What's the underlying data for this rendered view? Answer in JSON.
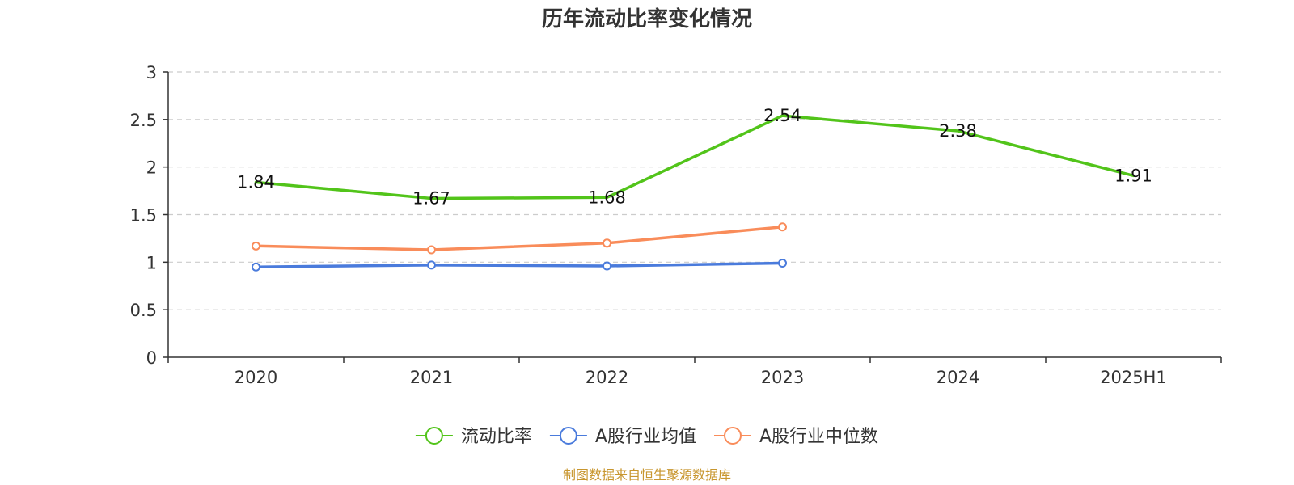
{
  "chart_data": {
    "type": "line",
    "title": "历年流动比率变化情况",
    "categories": [
      "2020",
      "2021",
      "2022",
      "2023",
      "2024",
      "2025H1"
    ],
    "ylim": [
      0,
      3
    ],
    "yticks": [
      "0",
      "0.5",
      "1",
      "1.5",
      "2",
      "2.5",
      "3"
    ],
    "grid": true,
    "legend_position": "bottom",
    "series": [
      {
        "name": "流动比率",
        "color": "#52c41a",
        "values": [
          1.84,
          1.67,
          1.68,
          2.54,
          2.38,
          1.91
        ],
        "labels": [
          "1.84",
          "1.67",
          "1.68",
          "2.54",
          "2.38",
          "1.91"
        ],
        "show_labels": true
      },
      {
        "name": "A股行业均值",
        "color": "#4a7bdc",
        "values": [
          0.95,
          0.97,
          0.96,
          0.99,
          null,
          null
        ],
        "show_labels": false
      },
      {
        "name": "A股行业中位数",
        "color": "#f98c5a",
        "values": [
          1.17,
          1.13,
          1.2,
          1.37,
          null,
          null
        ],
        "show_labels": false
      }
    ],
    "source": "制图数据来自恒生聚源数据库",
    "source_color": "#c8962e"
  }
}
